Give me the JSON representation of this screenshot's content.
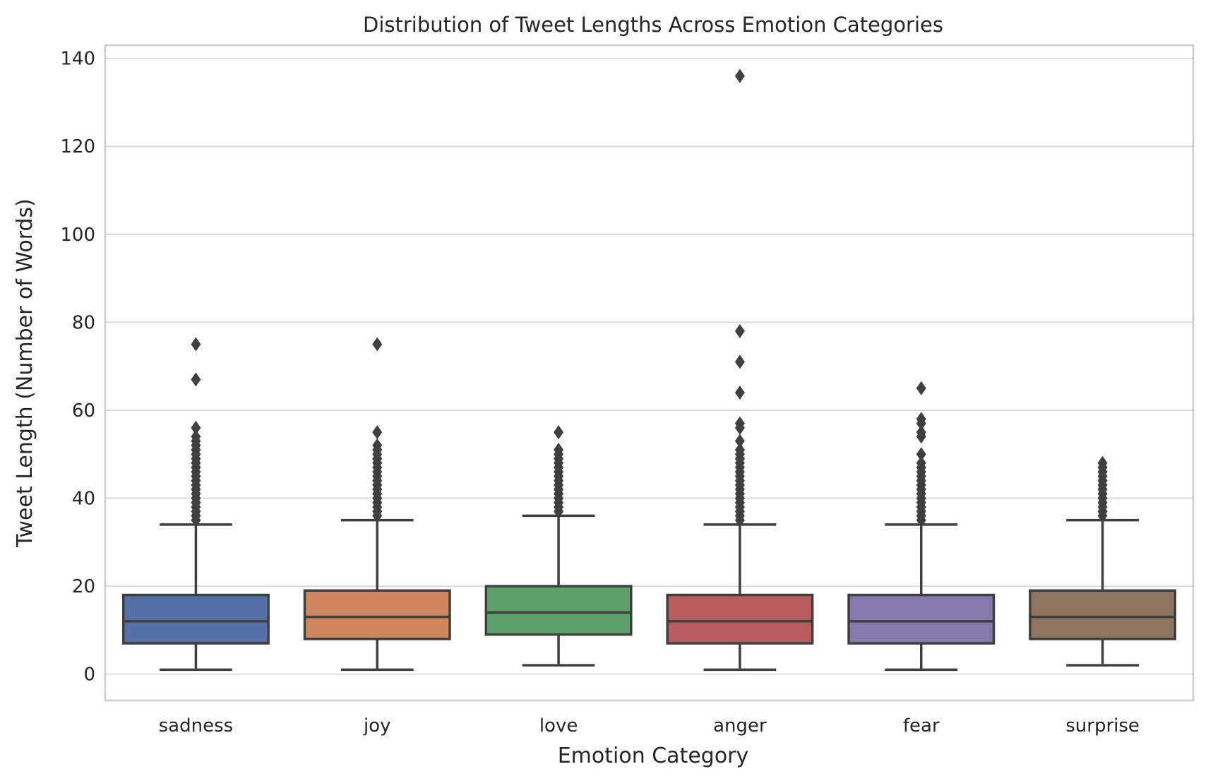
{
  "chart_data": {
    "type": "box",
    "title": "Distribution of Tweet Lengths Across Emotion Categories",
    "xlabel": "Emotion Category",
    "ylabel": "Tweet Length (Number of Words)",
    "ylim": [
      -6,
      143
    ],
    "yticks": [
      0,
      20,
      40,
      60,
      80,
      100,
      120,
      140
    ],
    "grid": true,
    "categories": [
      "sadness",
      "joy",
      "love",
      "anger",
      "fear",
      "surprise"
    ],
    "colors": [
      "#5470a6",
      "#d1875e",
      "#5ba06b",
      "#b85c5e",
      "#8679ae",
      "#8d7560"
    ],
    "boxes": [
      {
        "category": "sadness",
        "whisker_low": 1,
        "q1": 7,
        "median": 12,
        "q3": 18,
        "whisker_high": 34,
        "fliers": [
          35,
          36,
          37,
          38,
          39,
          40,
          41,
          42,
          43,
          44,
          45,
          46,
          47,
          48,
          49,
          50,
          51,
          52,
          53,
          54,
          56,
          67,
          75
        ]
      },
      {
        "category": "joy",
        "whisker_low": 1,
        "q1": 8,
        "median": 13,
        "q3": 19,
        "whisker_high": 35,
        "fliers": [
          36,
          37,
          38,
          39,
          40,
          41,
          42,
          43,
          44,
          45,
          46,
          47,
          48,
          49,
          50,
          51,
          52,
          55,
          75
        ]
      },
      {
        "category": "love",
        "whisker_low": 2,
        "q1": 9,
        "median": 14,
        "q3": 20,
        "whisker_high": 36,
        "fliers": [
          37,
          38,
          39,
          40,
          41,
          42,
          43,
          44,
          45,
          46,
          47,
          48,
          49,
          50,
          51,
          55
        ]
      },
      {
        "category": "anger",
        "whisker_low": 1,
        "q1": 7,
        "median": 12,
        "q3": 18,
        "whisker_high": 34,
        "fliers": [
          35,
          36,
          37,
          38,
          39,
          40,
          41,
          42,
          43,
          44,
          45,
          46,
          47,
          48,
          49,
          50,
          51,
          53,
          56,
          57,
          64,
          71,
          78,
          136
        ]
      },
      {
        "category": "fear",
        "whisker_low": 1,
        "q1": 7,
        "median": 12,
        "q3": 18,
        "whisker_high": 34,
        "fliers": [
          35,
          36,
          37,
          38,
          39,
          40,
          41,
          42,
          43,
          44,
          45,
          46,
          47,
          48,
          50,
          54,
          55,
          57,
          58,
          65
        ]
      },
      {
        "category": "surprise",
        "whisker_low": 2,
        "q1": 8,
        "median": 13,
        "q3": 19,
        "whisker_high": 35,
        "fliers": [
          36,
          37,
          38,
          39,
          40,
          41,
          42,
          43,
          44,
          45,
          46,
          47,
          48
        ]
      }
    ]
  }
}
